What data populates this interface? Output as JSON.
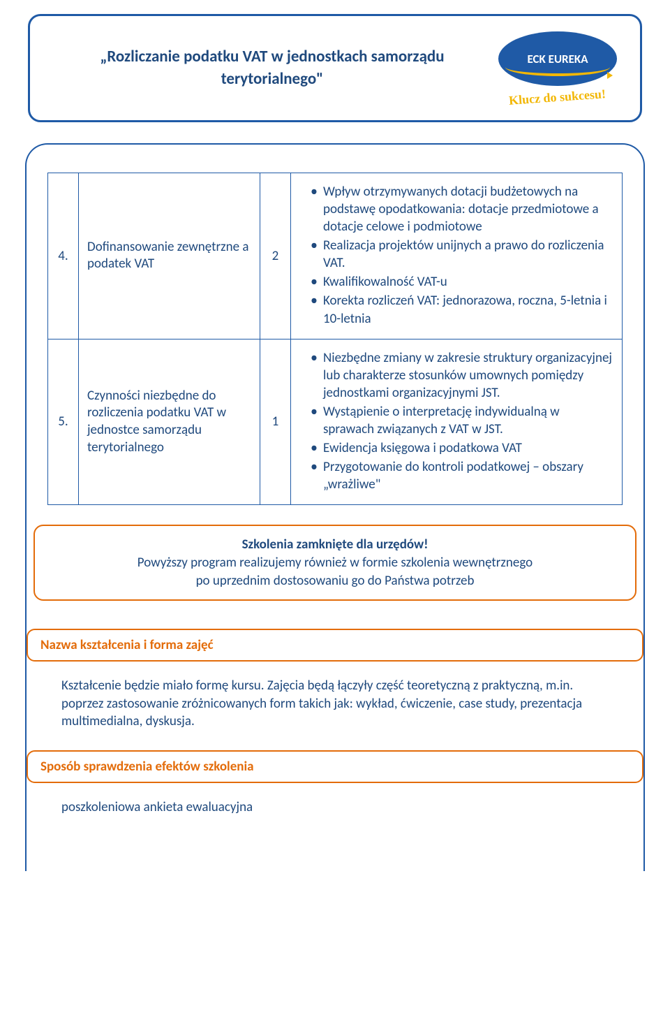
{
  "header": {
    "title": "„Rozliczanie podatku VAT w jednostkach samorządu terytorialnego\"",
    "logo_text": "ECK EUREKA",
    "tagline": "Klucz do sukcesu!"
  },
  "table": {
    "rows": [
      {
        "num": "4.",
        "topic": "Dofinansowanie zewnętrzne a podatek VAT",
        "hours": "2",
        "bullets": [
          "Wpływ otrzymywanych dotacji budżetowych na podstawę opodatkowania: dotacje przedmiotowe a dotacje celowe i podmiotowe",
          "Realizacja projektów unijnych a prawo do rozliczenia VAT.",
          "Kwalifikowalność VAT-u",
          "Korekta rozliczeń VAT: jednorazowa, roczna, 5-letnia i 10-letnia"
        ]
      },
      {
        "num": "5.",
        "topic": "Czynności niezbędne do rozliczenia podatku VAT  w jednostce samorządu terytorialnego",
        "hours": "1",
        "bullets": [
          "Niezbędne zmiany w zakresie struktury organizacyjnej lub charakterze stosunków umownych pomiędzy jednostkami organizacyjnymi JST.",
          "Wystąpienie o interpretację indywidualną w sprawach związanych z VAT  w JST.",
          "Ewidencja księgowa i podatkowa VAT",
          "Przygotowanie do kontroli podatkowej – obszary „wrażliwe\""
        ]
      }
    ]
  },
  "info": {
    "line1": "Szkolenia zamknięte dla urzędów!",
    "line2": "Powyższy program realizujemy również w formie szkolenia wewnętrznego",
    "line3": "po uprzednim dostosowaniu go do Państwa potrzeb"
  },
  "section1": {
    "label": "Nazwa kształcenia i forma zajęć",
    "body": "Kształcenie będzie miało formę kursu. Zajęcia będą łączyły część teoretyczną z praktyczną, m.in. poprzez zastosowanie zróżnicowanych form takich jak: wykład, ćwiczenie, case study, prezentacja multimedialna, dyskusja."
  },
  "section2": {
    "label": "Sposób sprawdzenia efektów szkolenia",
    "body": "poszkoleniowa ankieta ewaluacyjna"
  },
  "colors": {
    "blue": "#1f5aa6",
    "navy_text": "#1f497d",
    "orange": "#e36c0a",
    "gold": "#f2b705"
  }
}
